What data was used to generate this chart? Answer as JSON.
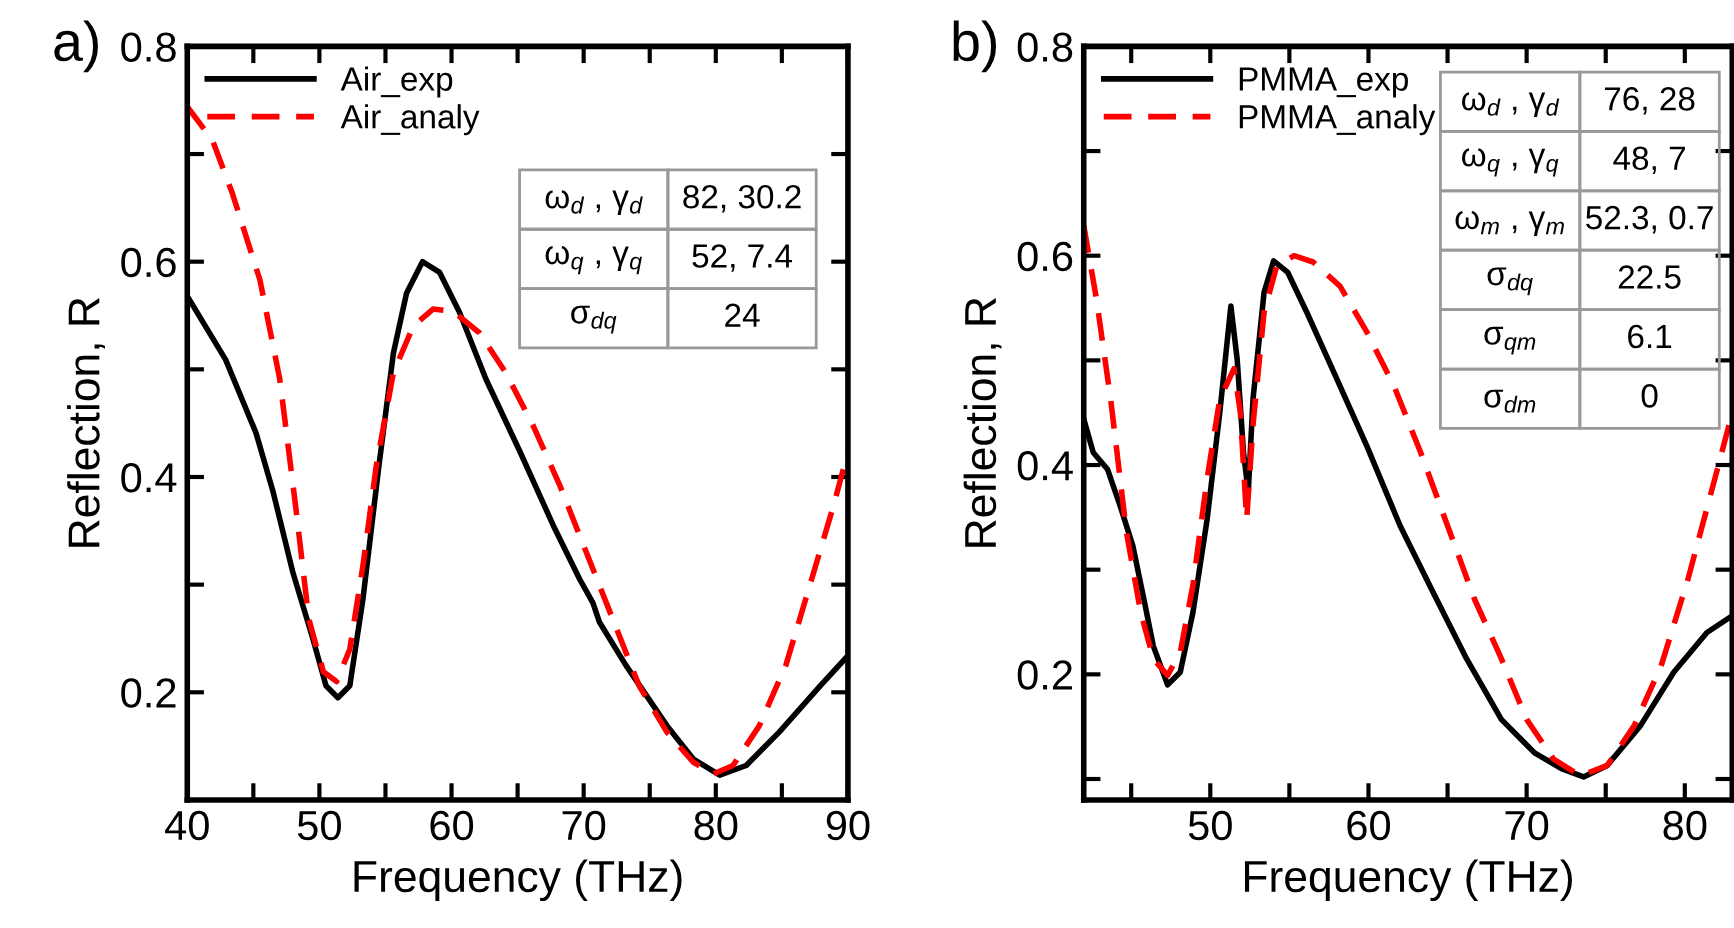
{
  "chart_data": [
    {
      "type": "line",
      "title": "a)",
      "xlabel": "Frequency (THz)",
      "ylabel": "Reflection, R",
      "xlim": [
        40,
        90
      ],
      "ylim": [
        0.1,
        0.8
      ],
      "xticks": [
        40,
        {
          "value": 45,
          "label": null
        },
        50,
        {
          "value": 55,
          "label": null
        },
        60,
        {
          "value": 65,
          "label": null
        },
        70,
        {
          "value": 75,
          "label": null
        },
        80,
        {
          "value": 85,
          "label": null
        },
        90
      ],
      "yticks": [
        0.2,
        {
          "value": 0.3,
          "label": null
        },
        0.4,
        {
          "value": 0.5,
          "label": null
        },
        0.6,
        {
          "value": 0.7,
          "label": null
        },
        0.8
      ],
      "grid": false,
      "legend": "top left",
      "annotations": [
        "ω$_{d}$ , γ$_{d}$",
        "82, 30.2",
        "ω$_{q}$ , γ$_{q}$",
        "52, 7.4",
        "σ$_{dq}$",
        "24"
      ],
      "series": [
        {
          "name": "Air_exp",
          "color": "#000000",
          "line_style": "solid",
          "x": [
            40,
            42.9,
            45.2,
            46.5,
            48,
            49.5,
            50.5,
            51.4,
            52.3,
            53.3,
            54.5,
            55.6,
            56.6,
            57.8,
            59.1,
            60.6,
            62.6,
            65.2,
            67.7,
            69.7,
            70.7,
            71.2,
            73.2,
            76.3,
            78.3,
            80.3,
            82.3,
            84.8,
            87.9,
            90
          ],
          "values": [
            0.568,
            0.509,
            0.441,
            0.386,
            0.311,
            0.25,
            0.206,
            0.195,
            0.206,
            0.287,
            0.41,
            0.515,
            0.571,
            0.6,
            0.59,
            0.553,
            0.491,
            0.423,
            0.355,
            0.305,
            0.283,
            0.265,
            0.225,
            0.169,
            0.138,
            0.123,
            0.132,
            0.163,
            0.206,
            0.234
          ]
        },
        {
          "name": "Air_analy",
          "color": "#ff0000",
          "line_style": "dashed",
          "x": [
            40,
            41.9,
            43.4,
            45.5,
            47,
            48.2,
            49.2,
            50.3,
            51.3,
            52.3,
            53.3,
            54.3,
            55.6,
            57.1,
            58.6,
            60.1,
            62.1,
            64.1,
            66.2,
            68.2,
            70.2,
            72.2,
            74.2,
            76.3,
            78.3,
            79.8,
            81.3,
            83.3,
            85.3,
            87.4,
            88.9,
            90
          ],
          "values": [
            0.744,
            0.713,
            0.664,
            0.583,
            0.491,
            0.373,
            0.268,
            0.219,
            0.21,
            0.24,
            0.318,
            0.41,
            0.497,
            0.54,
            0.556,
            0.554,
            0.534,
            0.497,
            0.447,
            0.392,
            0.33,
            0.268,
            0.206,
            0.163,
            0.135,
            0.124,
            0.132,
            0.169,
            0.225,
            0.311,
            0.373,
            0.423
          ]
        }
      ]
    },
    {
      "type": "line",
      "title": "b)",
      "xlabel": "Frequency (THz)",
      "ylabel": "Reflection, R",
      "xlim": [
        42,
        83
      ],
      "ylim": [
        0.08,
        0.8
      ],
      "xticks": [
        {
          "value": 45,
          "label": null
        },
        50,
        {
          "value": 55,
          "label": null
        },
        60,
        {
          "value": 65,
          "label": null
        },
        70,
        {
          "value": 75,
          "label": null
        },
        80
      ],
      "yticks": [
        {
          "value": 0.1,
          "label": null
        },
        0.2,
        {
          "value": 0.3,
          "label": null
        },
        0.4,
        {
          "value": 0.5,
          "label": null
        },
        0.6,
        {
          "value": 0.7,
          "label": null
        },
        0.8
      ],
      "grid": false,
      "legend": "top left",
      "annotations": [
        "ω$_{d}$ , γ$_{d}$",
        "76, 28",
        "ω$_{q}$ , γ$_{q}$",
        "48, 7",
        "ω$_{m}$ , γ$_{m}$",
        "52.3, 0.7",
        "σ$_{dq}$",
        "22.5",
        "σ$_{qm}$",
        "6.1",
        "σ$_{dm}$",
        "0"
      ],
      "series": [
        {
          "name": "PMMA_exp",
          "color": "#000000",
          "line_style": "solid",
          "x": [
            42,
            42.6,
            43.5,
            44.3,
            45.1,
            45.8,
            46.4,
            47.3,
            48.1,
            48.9,
            49.8,
            50.6,
            51.3,
            51.7,
            52.1,
            52.4,
            52.7,
            53.4,
            54,
            54.9,
            56.1,
            57.8,
            59.9,
            62,
            64.1,
            66.2,
            68.4,
            70.5,
            72.2,
            73.6,
            75.1,
            77.2,
            79.3,
            81.4,
            83
          ],
          "values": [
            0.444,
            0.412,
            0.396,
            0.361,
            0.323,
            0.272,
            0.227,
            0.19,
            0.202,
            0.259,
            0.348,
            0.45,
            0.552,
            0.501,
            0.412,
            0.374,
            0.463,
            0.565,
            0.595,
            0.584,
            0.546,
            0.489,
            0.418,
            0.342,
            0.278,
            0.215,
            0.157,
            0.125,
            0.11,
            0.102,
            0.113,
            0.151,
            0.202,
            0.24,
            0.256
          ]
        },
        {
          "name": "PMMA_analy",
          "color": "#ff0000",
          "line_style": "dashed",
          "x": [
            42,
            42.8,
            43.7,
            44.7,
            45.6,
            46.4,
            47.3,
            48.1,
            48.9,
            49.8,
            50.6,
            51.5,
            51.9,
            52.3,
            52.7,
            53.4,
            54.2,
            55.3,
            56.5,
            58.2,
            59.9,
            61.6,
            63.3,
            65,
            66.7,
            68.4,
            70,
            71.7,
            73.4,
            75.1,
            76.8,
            78.5,
            80.2,
            81.9,
            83
          ],
          "values": [
            0.629,
            0.559,
            0.463,
            0.336,
            0.259,
            0.215,
            0.199,
            0.221,
            0.285,
            0.387,
            0.463,
            0.492,
            0.45,
            0.348,
            0.438,
            0.546,
            0.59,
            0.6,
            0.594,
            0.571,
            0.527,
            0.476,
            0.412,
            0.342,
            0.272,
            0.215,
            0.157,
            0.119,
            0.103,
            0.113,
            0.151,
            0.208,
            0.291,
            0.387,
            0.45
          ]
        }
      ]
    }
  ]
}
